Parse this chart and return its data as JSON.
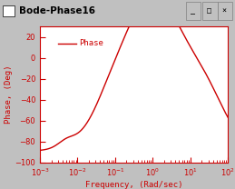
{
  "title_bar": "Bode-Phase16",
  "ylabel": "Phase, (Deg)",
  "xlabel": "Frequency, (Rad/sec)",
  "ylim": [
    -100,
    30
  ],
  "line_color": "#cc0000",
  "line_width": 1.0,
  "legend_label": "Phase",
  "background_color": "#ffffff",
  "window_bg": "#c0c0c0",
  "yticks": [
    -100,
    -80,
    -60,
    -40,
    -20,
    0,
    20
  ],
  "wz1": 0.04,
  "wz2": 0.25,
  "wp1": 4.0,
  "wp2": 60.0,
  "bump_freq": 0.005,
  "bump_amp": 5.0
}
